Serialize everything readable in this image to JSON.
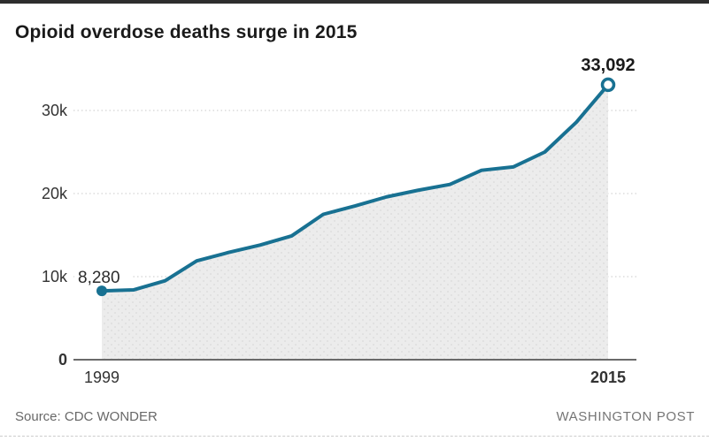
{
  "header": {
    "title": "Opioid overdose deaths surge in 2015"
  },
  "footer": {
    "source": "Source: CDC WONDER",
    "publisher": "WASHINGTON POST"
  },
  "chart_data": {
    "type": "area",
    "title": "Opioid overdose deaths surge in 2015",
    "xlabel": "",
    "ylabel": "",
    "x": [
      1999,
      2000,
      2001,
      2002,
      2003,
      2004,
      2005,
      2006,
      2007,
      2008,
      2009,
      2010,
      2011,
      2012,
      2013,
      2014,
      2015
    ],
    "series": [
      {
        "name": "Opioid overdose deaths",
        "values": [
          8280,
          8400,
          9500,
          11900,
          12900,
          13800,
          14900,
          17500,
          18500,
          19600,
          20400,
          21100,
          22800,
          23200,
          25000,
          28600,
          33092
        ]
      }
    ],
    "annotations": [
      {
        "x": 1999,
        "label": "8,280",
        "kind": "start"
      },
      {
        "x": 2015,
        "label": "33,092",
        "kind": "end"
      }
    ],
    "y_ticks": [
      {
        "v": 0,
        "label": "0",
        "bold": true
      },
      {
        "v": 10000,
        "label": "10k",
        "bold": false
      },
      {
        "v": 20000,
        "label": "20k",
        "bold": false
      },
      {
        "v": 30000,
        "label": "30k",
        "bold": false
      }
    ],
    "x_ticks": [
      {
        "v": 1999,
        "label": "1999",
        "bold": false
      },
      {
        "v": 2015,
        "label": "2015",
        "bold": true
      }
    ],
    "ylim": [
      0,
      36000
    ],
    "grid": "dotted-horizontal",
    "legend": "none",
    "colors": {
      "line": "#187192",
      "area_fill": "#ececec",
      "area_dot": "#d9d9d9",
      "grid": "#c9c9c9",
      "axis": "#6a6a6a",
      "tick_text": "#333333",
      "annotation_text": "#2b2b2b"
    }
  }
}
